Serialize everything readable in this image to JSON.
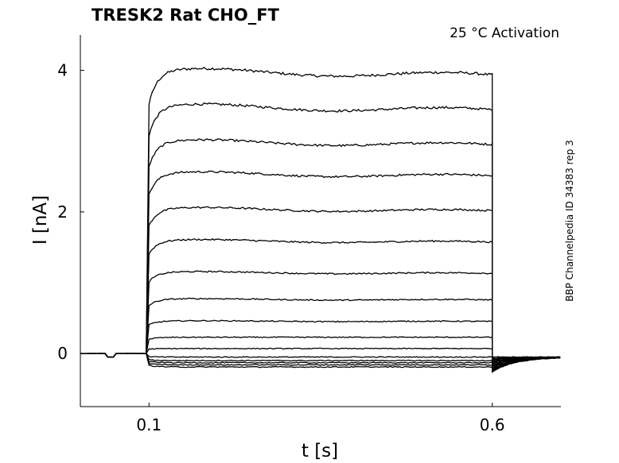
{
  "chart_data": {
    "type": "line",
    "title": "TRESK2  Rat  CHO_FT",
    "subtitle": "25 °C  Activation",
    "xlabel": "t [s]",
    "ylabel": "I [nA]",
    "side_note": "BBP Channelpedia ID 34383 rep 3",
    "xlim": [
      0.0,
      0.7
    ],
    "ylim": [
      -0.75,
      4.5
    ],
    "x_ticks": [
      {
        "value": 0.1,
        "label": "0.1"
      },
      {
        "value": 0.6,
        "label": "0.6"
      }
    ],
    "y_ticks": [
      {
        "value": 0,
        "label": "0"
      },
      {
        "value": 2,
        "label": "2"
      },
      {
        "value": 4,
        "label": "4"
      }
    ],
    "grid": false,
    "legend": "none",
    "line_color": "#000000",
    "pulse": {
      "start": 0.1,
      "end": 0.6
    },
    "series_plateau_nA": [
      4.0,
      3.5,
      3.0,
      2.55,
      2.05,
      1.6,
      1.15,
      0.77,
      0.46,
      0.23,
      0.07,
      -0.05,
      -0.1,
      -0.13,
      -0.16,
      -0.19
    ]
  }
}
